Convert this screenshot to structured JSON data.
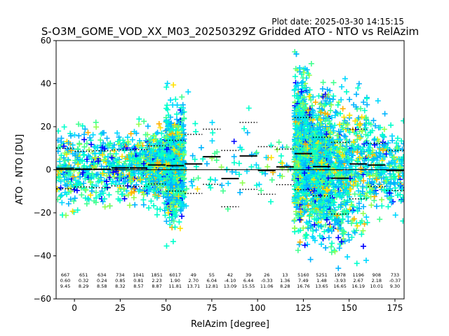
{
  "chart_data": {
    "type": "scatter",
    "title": "S-O3M_GOME_VOD_XX_M03_20250329Z Gridded ATO - NTO vs RelAzim",
    "plot_date": "Plot date: 2025-03-30 14:15:15",
    "xlabel": "RelAzim [degree]",
    "ylabel": "ATO - NTO [DU]",
    "xlim": [
      -10,
      180
    ],
    "ylim": [
      -60,
      60
    ],
    "xticks": [
      0,
      25,
      50,
      75,
      100,
      125,
      150,
      175
    ],
    "yticks": [
      -60,
      -40,
      -20,
      0,
      20,
      40,
      60
    ],
    "grid": false,
    "marker": "+",
    "clusters": [
      {
        "x_range": [
          -10,
          55
        ],
        "y_mean": 0,
        "y_spread": 12,
        "dominant": "#00c8ff"
      },
      {
        "x_range": [
          55,
          125
        ],
        "y_mean": 2,
        "y_spread": 11,
        "dominant": "#00ffaa"
      },
      {
        "x_range": [
          125,
          180
        ],
        "y_mean": 0,
        "y_spread": 15,
        "dominant": "#00b4ff"
      }
    ],
    "bins": [
      {
        "x": -5,
        "count": 667,
        "mean": 0.6,
        "std": 9.45
      },
      {
        "x": 5,
        "count": 651,
        "mean": 0.32,
        "std": 8.29
      },
      {
        "x": 15,
        "count": 634,
        "mean": 0.24,
        "std": 8.58
      },
      {
        "x": 25,
        "count": 734,
        "mean": 0.85,
        "std": 8.32
      },
      {
        "x": 35,
        "count": 1041,
        "mean": 0.81,
        "std": 8.57
      },
      {
        "x": 45,
        "count": 1851,
        "mean": 2.23,
        "std": 8.87
      },
      {
        "x": 55,
        "count": 6017,
        "mean": 1.9,
        "std": 11.81
      },
      {
        "x": 65,
        "count": 49,
        "mean": 2.7,
        "std": 13.71
      },
      {
        "x": 75,
        "count": 55,
        "mean": 6.04,
        "std": 12.81
      },
      {
        "x": 85,
        "count": 42,
        "mean": -4.1,
        "std": 13.09
      },
      {
        "x": 95,
        "count": 39,
        "mean": 6.44,
        "std": 15.55
      },
      {
        "x": 105,
        "count": 26,
        "mean": -0.33,
        "std": 11.06
      },
      {
        "x": 115,
        "count": 13,
        "mean": 1.36,
        "std": 8.28
      },
      {
        "x": 125,
        "count": 5160,
        "mean": 7.49,
        "std": 16.76
      },
      {
        "x": 135,
        "count": 5251,
        "mean": 1.48,
        "std": 13.65
      },
      {
        "x": 145,
        "count": 1978,
        "mean": -3.93,
        "std": 16.65
      },
      {
        "x": 155,
        "count": 1196,
        "mean": 2.67,
        "std": 16.19
      },
      {
        "x": 165,
        "count": 908,
        "mean": 2.18,
        "std": 10.01
      },
      {
        "x": 175,
        "count": 733,
        "mean": -0.37,
        "std": 9.3
      }
    ],
    "colors": [
      "#0000ff",
      "#0080ff",
      "#00b4ff",
      "#00d8ff",
      "#00ffcc",
      "#40ff90",
      "#90ff50",
      "#d0ff20",
      "#ffe000",
      "#ffb000"
    ]
  }
}
